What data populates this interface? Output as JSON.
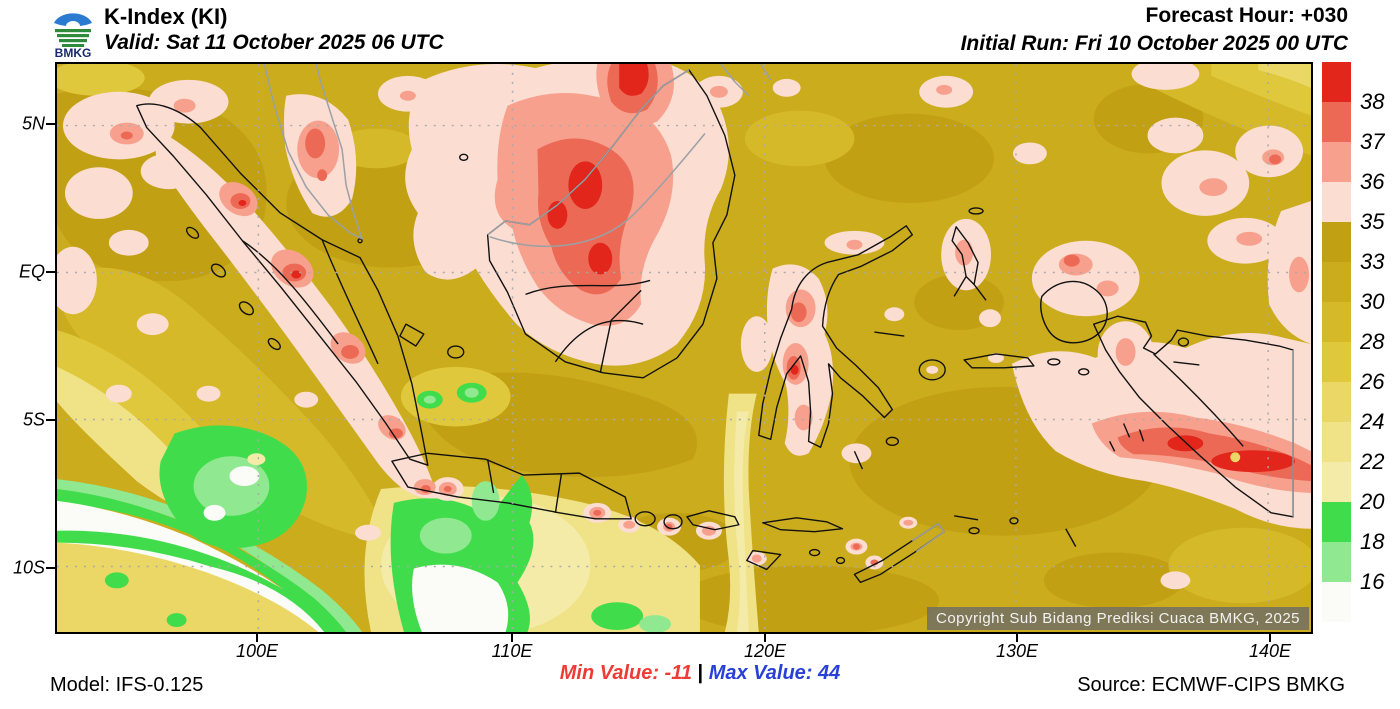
{
  "header": {
    "logo_text": "BMKG",
    "title": "K-Index (KI)",
    "valid": "Valid: Sat 11 October 2025 06 UTC",
    "forecast_hour": "Forecast Hour: +030",
    "initial_run": "Initial Run: Fri 10 October 2025 00 UTC"
  },
  "map": {
    "copyright": "Copyright Sub Bidang Prediksi Cuaca BMKG, 2025"
  },
  "axes": {
    "lat_labels": [
      "5N",
      "EQ",
      "5S",
      "10S"
    ],
    "lon_labels": [
      "100E",
      "110E",
      "120E",
      "130E",
      "140E"
    ]
  },
  "colorbar": {
    "tick_labels": [
      "38",
      "37",
      "36",
      "35",
      "33",
      "30",
      "28",
      "26",
      "24",
      "22",
      "20",
      "18",
      "16"
    ],
    "segment_colors": [
      "#E2261B",
      "#EC6A55",
      "#F7A08D",
      "#FBDDD2",
      "#C2A014",
      "#CBAC1D",
      "#D6B929",
      "#E0C83C",
      "#EAD765",
      "#F0E287",
      "#F5EBA9",
      "#41DC4B",
      "#90E991",
      "#FBFBF7"
    ]
  },
  "footer": {
    "model": "Model: IFS-0.125",
    "min_label": "Min Value: -11",
    "separator": " | ",
    "max_label": "Max Value:  44",
    "source": "Source: ECMWF-CIPS BMKG",
    "min_color": "#EE3B33",
    "max_color": "#2840D8"
  }
}
